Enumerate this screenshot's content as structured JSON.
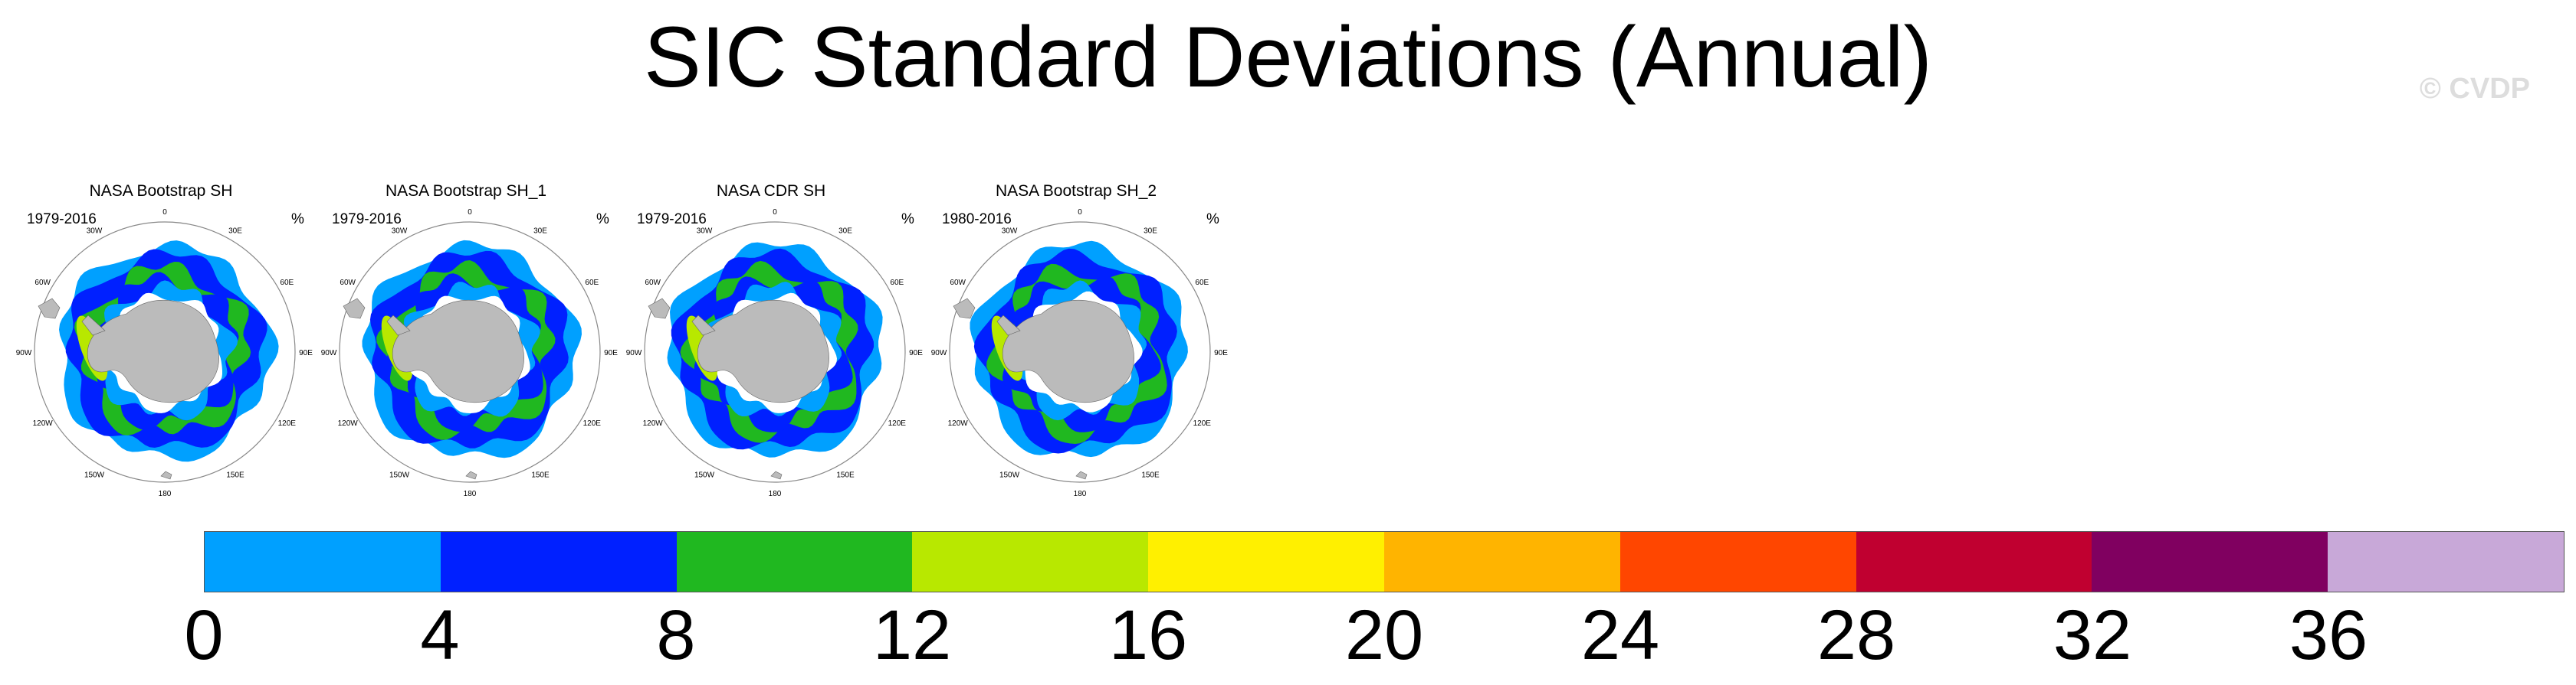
{
  "title": "SIC Standard Deviations (Annual)",
  "watermark": "© CVDP",
  "panels": [
    {
      "title": "NASA Bootstrap SH",
      "period": "1979-2016",
      "units": "%"
    },
    {
      "title": "NASA Bootstrap SH_1",
      "period": "1979-2016",
      "units": "%"
    },
    {
      "title": "NASA CDR SH",
      "period": "1979-2016",
      "units": "%"
    },
    {
      "title": "NASA Bootstrap SH_2",
      "period": "1980-2016",
      "units": "%"
    }
  ],
  "map_labels": {
    "top": "0",
    "upper_right": "30E",
    "right_upper": "60E",
    "right": "90E",
    "right_lower": "120E",
    "lower_right": "150E",
    "bottom": "180",
    "lower_left": "150W",
    "left_lower": "120W",
    "left": "90W",
    "left_upper": "60W",
    "upper_left": "30W"
  },
  "colorbar": {
    "colors": [
      "#00a0ff",
      "#0020ff",
      "#20b820",
      "#b8e800",
      "#fff000",
      "#ffb400",
      "#ff4600",
      "#c00030",
      "#800060",
      "#c8a8d8"
    ],
    "labels": [
      "0",
      "4",
      "8",
      "12",
      "16",
      "20",
      "24",
      "28",
      "32",
      "36"
    ]
  },
  "colors": {
    "land": "#bbbbbb",
    "ocean": "#ffffff"
  }
}
